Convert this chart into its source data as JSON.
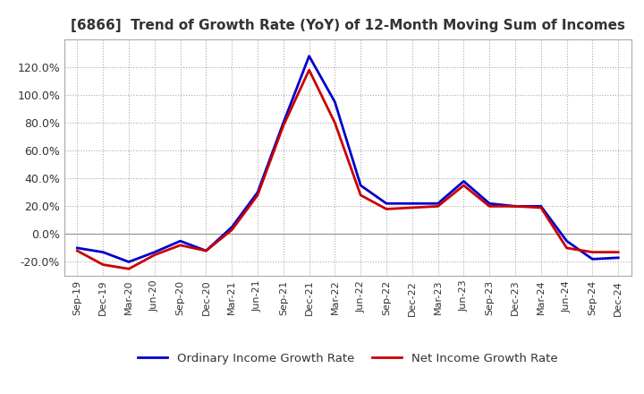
{
  "title": "[6866]  Trend of Growth Rate (YoY) of 12-Month Moving Sum of Incomes",
  "x_labels": [
    "Sep-19",
    "Dec-19",
    "Mar-20",
    "Jun-20",
    "Sep-20",
    "Dec-20",
    "Mar-21",
    "Jun-21",
    "Sep-21",
    "Dec-21",
    "Mar-22",
    "Jun-22",
    "Sep-22",
    "Dec-22",
    "Mar-23",
    "Jun-23",
    "Sep-23",
    "Dec-23",
    "Mar-24",
    "Jun-24",
    "Sep-24",
    "Dec-24"
  ],
  "ordinary_income": [
    -10,
    -13,
    -20,
    -13,
    -5,
    -12,
    5,
    30,
    80,
    128,
    95,
    35,
    22,
    22,
    22,
    38,
    22,
    20,
    20,
    -5,
    -18,
    -17
  ],
  "net_income": [
    -12,
    -22,
    -25,
    -15,
    -8,
    -12,
    3,
    28,
    78,
    118,
    80,
    28,
    18,
    19,
    20,
    35,
    20,
    20,
    19,
    -10,
    -13,
    -13
  ],
  "ordinary_color": "#0000cc",
  "net_color": "#cc0000",
  "bg_color": "#ffffff",
  "plot_bg_color": "#ffffff",
  "grid_color": "#aaaaaa",
  "ylim": [
    -30,
    140
  ],
  "yticks": [
    -20,
    0,
    20,
    40,
    60,
    80,
    100,
    120
  ],
  "legend_ordinary": "Ordinary Income Growth Rate",
  "legend_net": "Net Income Growth Rate",
  "line_width": 2.0,
  "title_color": "#333333",
  "tick_color": "#333333"
}
